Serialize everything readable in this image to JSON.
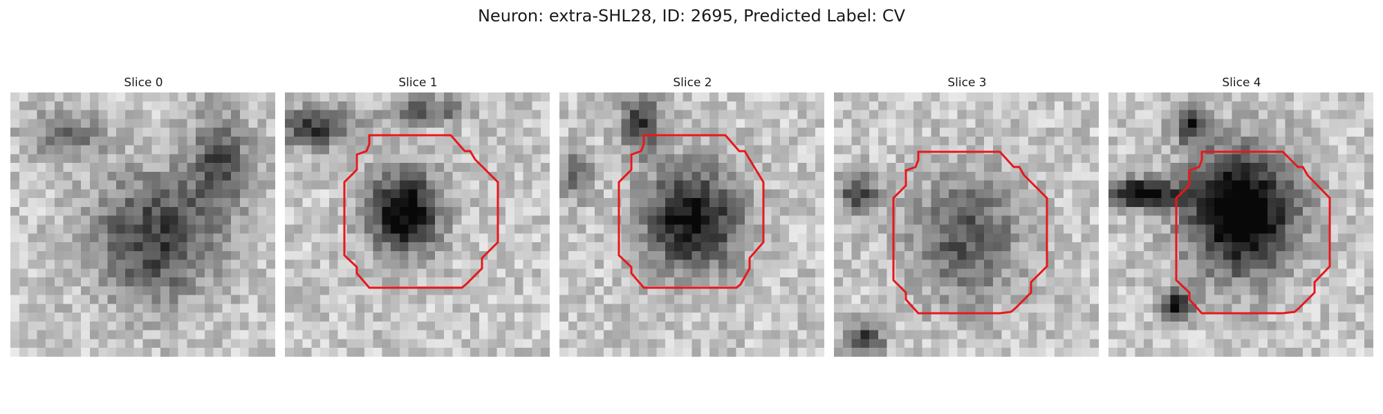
{
  "figure": {
    "title": "Neuron: extra-SHL28, ID: 2695, Predicted Label: CV"
  },
  "panels": [
    {
      "title": "Slice 0",
      "has_outline": false,
      "dark_blob": "diffuse"
    },
    {
      "title": "Slice 1",
      "has_outline": true,
      "dark_blob": "upper-left"
    },
    {
      "title": "Slice 2",
      "has_outline": true,
      "dark_blob": "center"
    },
    {
      "title": "Slice 3",
      "has_outline": true,
      "dark_blob": "faint-center"
    },
    {
      "title": "Slice 4",
      "has_outline": true,
      "dark_blob": "large-center"
    }
  ],
  "colors": {
    "outline": "#e8171b",
    "background": "#ffffff"
  },
  "colormap": "grayscale"
}
